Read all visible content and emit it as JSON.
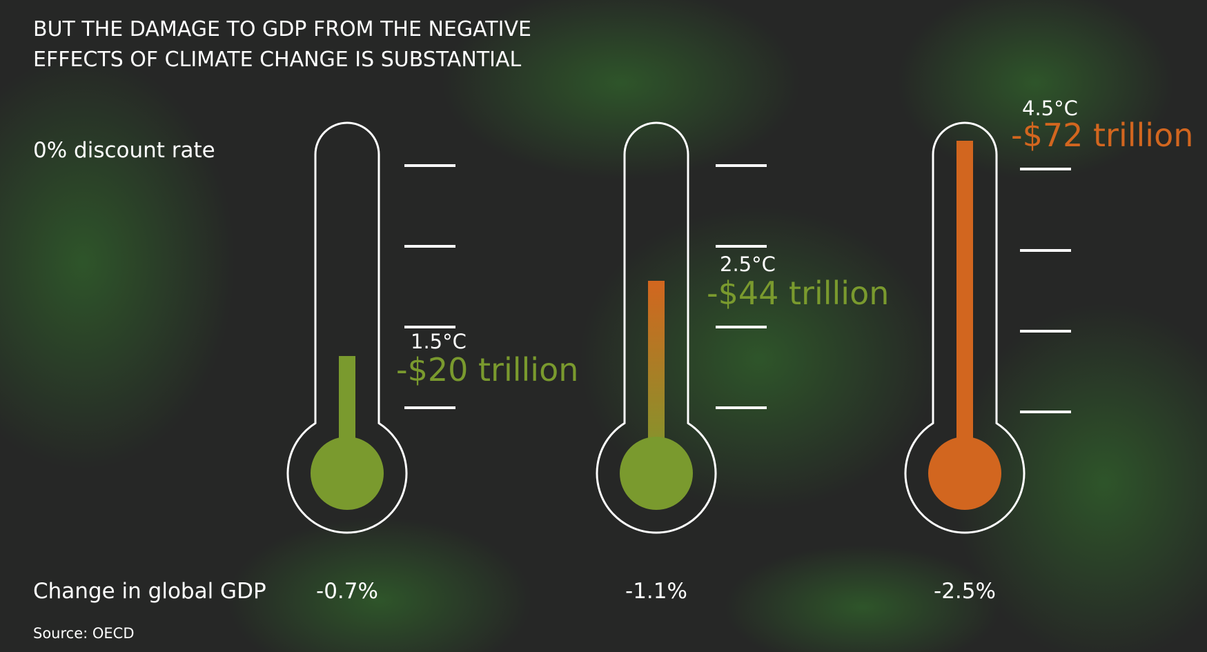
{
  "header": {
    "title_lines": [
      "BUT THE DAMAGE TO GDP FROM THE NEGATIVE",
      "EFFECTS OF CLIMATE CHANGE IS SUBSTANTIAL"
    ],
    "subtitle": "0% discount rate"
  },
  "thermometers": [
    {
      "temperature": "1.5°C",
      "damage": "-$20 trillion",
      "gdp_change": "-0.7%"
    },
    {
      "temperature": "2.5°C",
      "damage": "-$44 trillion",
      "gdp_change": "-1.1%"
    },
    {
      "temperature": "4.5°C",
      "damage": "-$72 trillion",
      "gdp_change": "-2.5%"
    }
  ],
  "footer": {
    "gdp_label": "Change in global GDP",
    "source": "Source: OECD"
  }
}
